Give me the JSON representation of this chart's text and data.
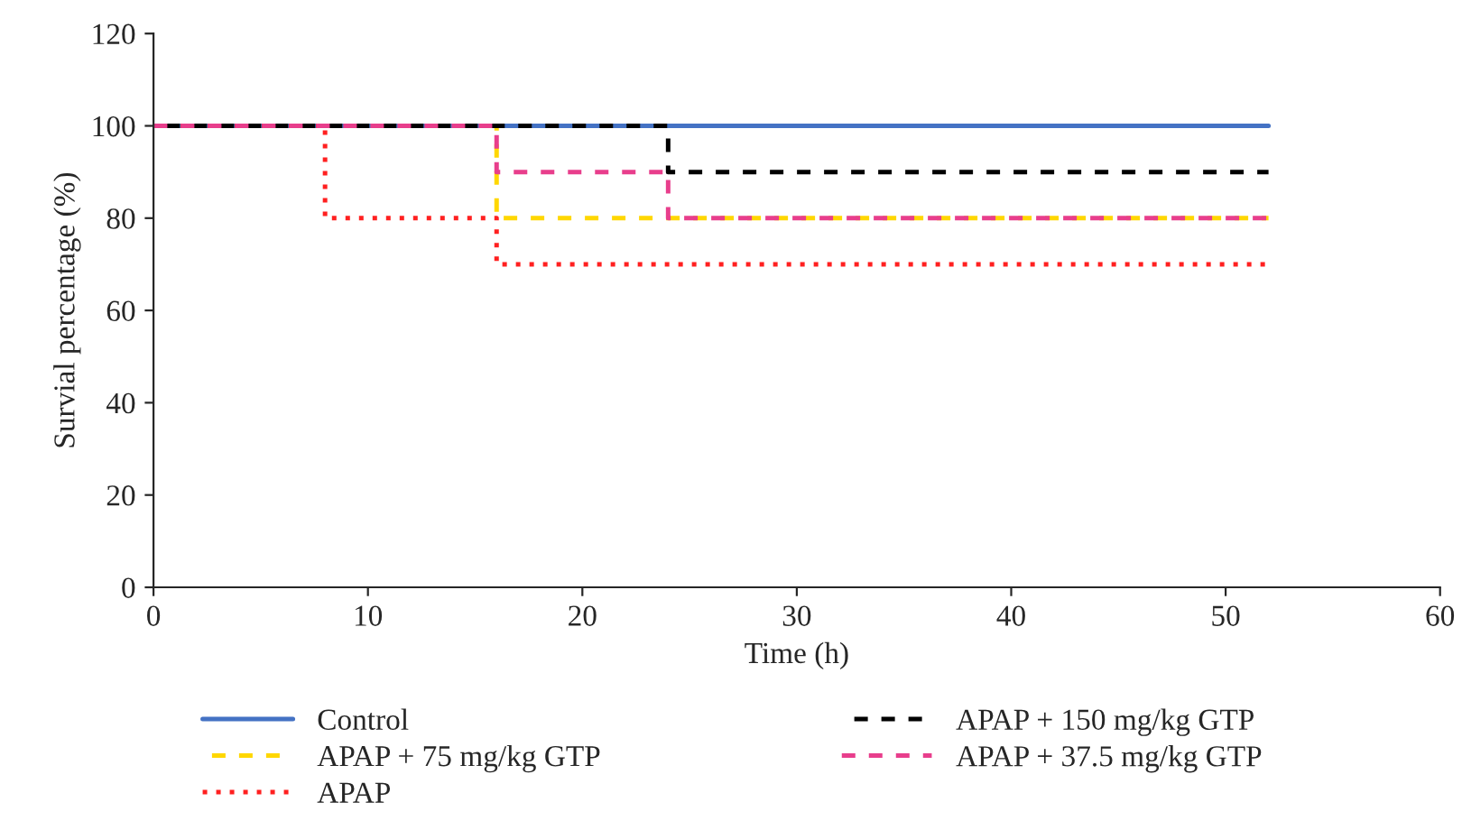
{
  "chart_data": {
    "type": "step",
    "xlabel": "Time (h)",
    "ylabel": "Survial percentage (%)",
    "xlim": [
      0,
      60
    ],
    "xticks": [
      0,
      10,
      20,
      30,
      40,
      50,
      60
    ],
    "ylim": [
      0,
      120
    ],
    "yticks": [
      0,
      20,
      40,
      60,
      80,
      100,
      120
    ],
    "grid": false,
    "legend": "bottom",
    "series": [
      {
        "name": "Control",
        "color": "#4472c4",
        "line_style": "solid",
        "x": [
          0,
          52
        ],
        "values": [
          100,
          100
        ]
      },
      {
        "name": "APAP + 75 mg/kg GTP",
        "color": "#ffd700",
        "line_style": "dashed",
        "x": [
          0,
          16,
          52
        ],
        "values": [
          100,
          80,
          80
        ]
      },
      {
        "name": "APAP",
        "color": "#ff2020",
        "line_style": "dotted",
        "x": [
          0,
          8,
          16,
          52
        ],
        "values": [
          100,
          80,
          70,
          70
        ]
      },
      {
        "name": "APAP + 150 mg/kg GTP",
        "color": "#000000",
        "line_style": "dashed",
        "x": [
          0,
          24,
          52
        ],
        "values": [
          100,
          90,
          90
        ]
      },
      {
        "name": "APAP + 37.5 mg/kg GTP",
        "color": "#e83e8c",
        "line_style": "dashed",
        "x": [
          0,
          16,
          24,
          52
        ],
        "values": [
          100,
          90,
          80,
          80
        ]
      }
    ]
  }
}
